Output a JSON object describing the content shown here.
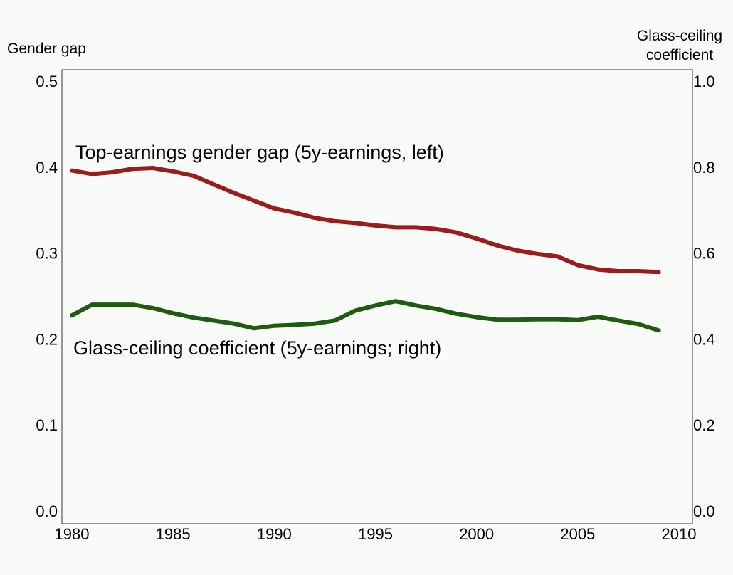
{
  "chart_data": {
    "type": "line",
    "left_axis": {
      "label": "Gender gap",
      "ylim": [
        0,
        0.5
      ],
      "ticks": [
        "0.0",
        "0.1",
        "0.2",
        "0.3",
        "0.4",
        "0.5"
      ]
    },
    "right_axis": {
      "label_lines": [
        "Glass-ceiling",
        "coefficient"
      ],
      "ylim": [
        0,
        1.0
      ],
      "ticks": [
        "0.0",
        "0.2",
        "0.4",
        "0.6",
        "0.8",
        "1.0"
      ]
    },
    "x_axis": {
      "xlim": [
        1980,
        2010
      ],
      "ticks": [
        "1980",
        "1985",
        "1990",
        "1995",
        "2000",
        "2005",
        "2010"
      ]
    },
    "grid": false,
    "x": [
      1980,
      1981,
      1982,
      1983,
      1984,
      1985,
      1986,
      1987,
      1988,
      1989,
      1990,
      1991,
      1992,
      1993,
      1994,
      1995,
      1996,
      1997,
      1998,
      1999,
      2000,
      2001,
      2002,
      2003,
      2004,
      2005,
      2006,
      2007,
      2008,
      2009
    ],
    "series": [
      {
        "name": "Top-earnings gender gap (5y-earnings, left)",
        "axis": "left",
        "color": "#9b1c1c",
        "values": [
          0.396,
          0.392,
          0.394,
          0.398,
          0.399,
          0.395,
          0.39,
          0.38,
          0.37,
          0.361,
          0.352,
          0.347,
          0.341,
          0.337,
          0.335,
          0.332,
          0.33,
          0.33,
          0.328,
          0.324,
          0.317,
          0.309,
          0.303,
          0.299,
          0.296,
          0.286,
          0.281,
          0.279,
          0.279,
          0.278
        ]
      },
      {
        "name": "Glass-ceiling coefficient (5y-earnings; right)",
        "axis": "right",
        "color": "#1e5a12",
        "values": [
          0.455,
          0.48,
          0.48,
          0.48,
          0.472,
          0.46,
          0.45,
          0.443,
          0.436,
          0.425,
          0.431,
          0.433,
          0.436,
          0.443,
          0.466,
          0.478,
          0.488,
          0.478,
          0.47,
          0.459,
          0.451,
          0.445,
          0.445,
          0.446,
          0.446,
          0.444,
          0.452,
          0.443,
          0.435,
          0.42
        ]
      }
    ]
  }
}
